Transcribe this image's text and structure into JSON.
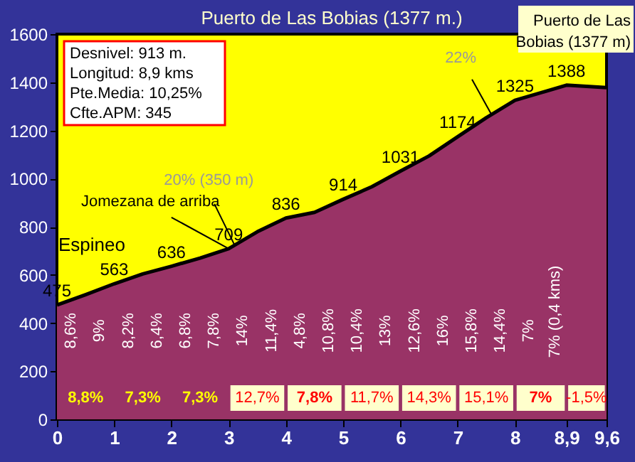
{
  "chart_data": {
    "type": "area",
    "title": "Puerto de Las Bobias (1377 m.)",
    "x": [
      0,
      0.5,
      1,
      1.5,
      2,
      2.5,
      3,
      3.5,
      4,
      4.5,
      5,
      5.5,
      6,
      6.5,
      7,
      7.5,
      8,
      8.5,
      8.9,
      9.6
    ],
    "series": [
      {
        "color": "#993366",
        "values": [
          475,
          518,
          563,
          604,
          636,
          670,
          709,
          779,
          836,
          860,
          914,
          966,
          1031,
          1094,
          1174,
          1253,
          1325,
          1360,
          1388,
          1378
        ],
        "value_labels": [
          "475",
          null,
          "563",
          null,
          "636",
          null,
          "709",
          null,
          "836",
          null,
          "914",
          null,
          "1031",
          null,
          "1174",
          null,
          "1325",
          null,
          "1388",
          null
        ]
      }
    ],
    "xlim": [
      0,
      9.6
    ],
    "xticks": [
      0,
      1,
      2,
      3,
      4,
      5,
      6,
      7,
      8,
      {
        "value": 8.9,
        "label": "8,9"
      },
      {
        "value": 9.6,
        "label": "9,6"
      }
    ],
    "ylim": [
      0,
      1600
    ],
    "yticks": [
      0,
      200,
      400,
      600,
      800,
      1000,
      1200,
      1400,
      1600
    ],
    "grid": false,
    "annotations": [
      "Desnivel: 913 m.",
      "Longitud: 8,9 kms",
      "Pte.Media: 10,25%",
      "Cfte.APM: 345",
      "Puerto de Las Bobias (1377 m)",
      "8,6%",
      "9%",
      "8,2%",
      "6,4%",
      "6,8%",
      "7,8%",
      "14%",
      "11,4%",
      "4,8%",
      "10,8%",
      "10,4%",
      "13%",
      "12,6%",
      "16%",
      "15,8%",
      "14,4%",
      "7%",
      "7% (0,4 kms)",
      "8,8%",
      "7,3%",
      "7,3%",
      "12,7%",
      "7,8%",
      "11,7%",
      "14,3%",
      "15,1%",
      "7%",
      "-1,5%",
      {
        "text": "Espineo",
        "x": 0,
        "y": 475
      },
      {
        "text": "Jomezana de arriba",
        "x": 3,
        "y": 709
      },
      {
        "text": "20% (350 m)",
        "x": 3.1,
        "y": 725
      },
      {
        "text": "22%",
        "x": 7.6,
        "y": 1262
      }
    ]
  }
}
